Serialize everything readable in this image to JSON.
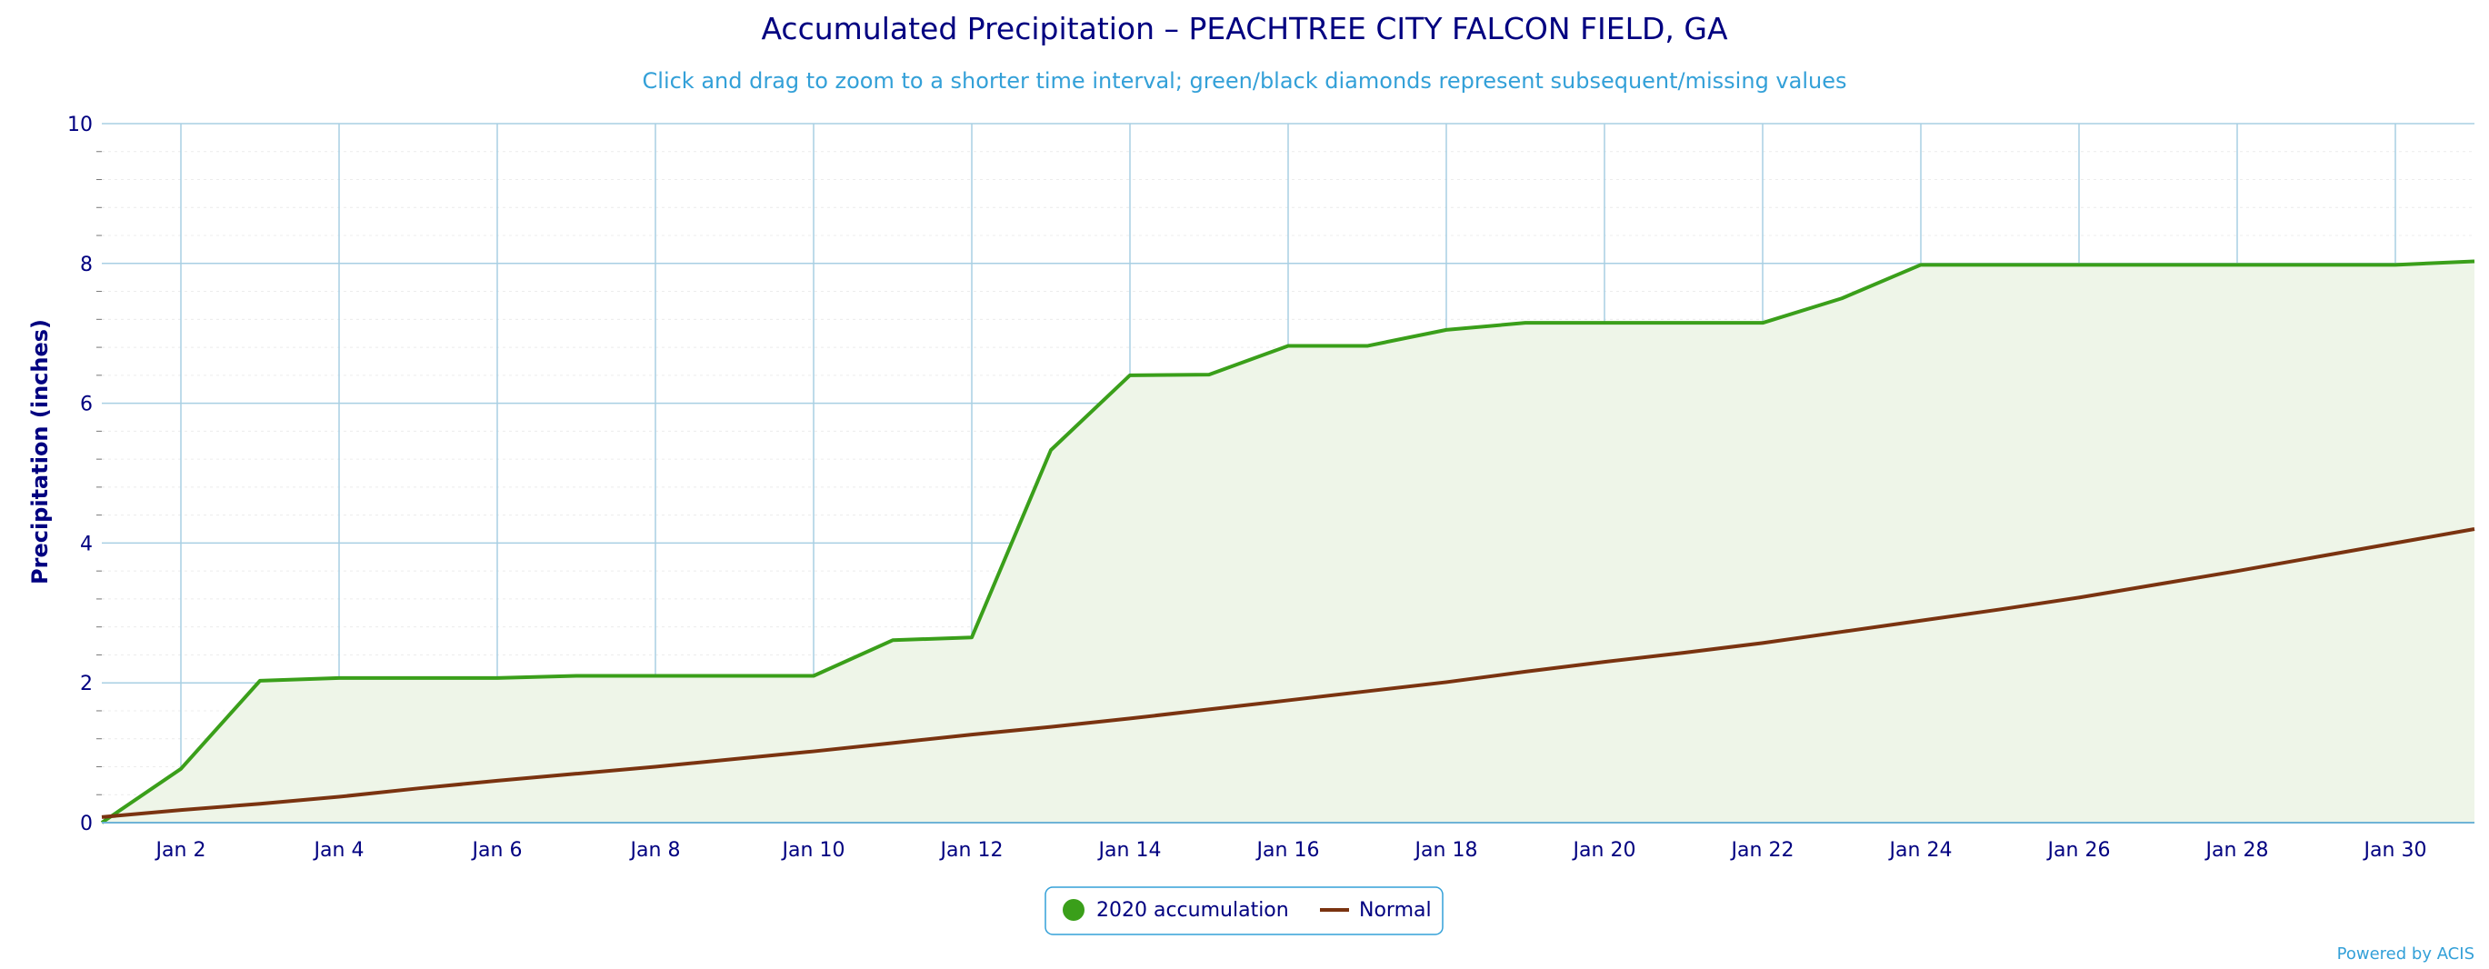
{
  "chart_data": {
    "type": "area",
    "title": "Accumulated Precipitation – PEACHTREE CITY FALCON FIELD, GA",
    "subtitle": "Click and drag to zoom to a shorter time interval; green/black diamonds represent subsequent/missing values",
    "ylabel": "Precipitation (inches)",
    "xlabel": "",
    "x_unit": "day of January 2020",
    "xlim": [
      1,
      31
    ],
    "ylim": [
      0,
      10
    ],
    "y_ticks": [
      0,
      2,
      4,
      6,
      8,
      10
    ],
    "x_ticks": [
      2,
      4,
      6,
      8,
      10,
      12,
      14,
      16,
      18,
      20,
      22,
      24,
      26,
      28,
      30
    ],
    "x_tick_labels": [
      "Jan 2",
      "Jan 4",
      "Jan 6",
      "Jan 8",
      "Jan 10",
      "Jan 12",
      "Jan 14",
      "Jan 16",
      "Jan 18",
      "Jan 20",
      "Jan 22",
      "Jan 24",
      "Jan 26",
      "Jan 28",
      "Jan 30"
    ],
    "grid": true,
    "legend_position": "bottom-center",
    "series": [
      {
        "name": "2020 accumulation",
        "color": "#3a9f1a",
        "fill": "#eef5e8",
        "x": [
          1,
          2,
          3,
          4,
          5,
          6,
          7,
          8,
          9,
          10,
          11,
          12,
          13,
          14,
          15,
          16,
          17,
          18,
          19,
          20,
          21,
          22,
          23,
          24,
          25,
          26,
          27,
          28,
          29,
          30,
          31
        ],
        "values": [
          0.0,
          0.77,
          2.03,
          2.07,
          2.07,
          2.07,
          2.1,
          2.1,
          2.1,
          2.1,
          2.61,
          2.65,
          5.33,
          6.4,
          6.41,
          6.82,
          6.82,
          7.05,
          7.15,
          7.15,
          7.15,
          7.15,
          7.5,
          7.98,
          7.98,
          7.98,
          7.98,
          7.98,
          7.98,
          7.98,
          8.03
        ]
      },
      {
        "name": "Normal",
        "color": "#7a3310",
        "x": [
          1,
          2,
          3,
          4,
          5,
          6,
          7,
          8,
          9,
          10,
          11,
          12,
          13,
          14,
          15,
          16,
          17,
          18,
          19,
          20,
          21,
          22,
          23,
          24,
          25,
          26,
          27,
          28,
          29,
          30,
          31
        ],
        "values": [
          0.08,
          0.18,
          0.27,
          0.37,
          0.49,
          0.6,
          0.7,
          0.8,
          0.91,
          1.02,
          1.14,
          1.26,
          1.37,
          1.49,
          1.62,
          1.75,
          1.88,
          2.01,
          2.16,
          2.3,
          2.43,
          2.57,
          2.73,
          2.89,
          3.05,
          3.22,
          3.41,
          3.6,
          3.8,
          4.0,
          4.2
        ]
      }
    ]
  },
  "credit": "Powered by ACIS"
}
